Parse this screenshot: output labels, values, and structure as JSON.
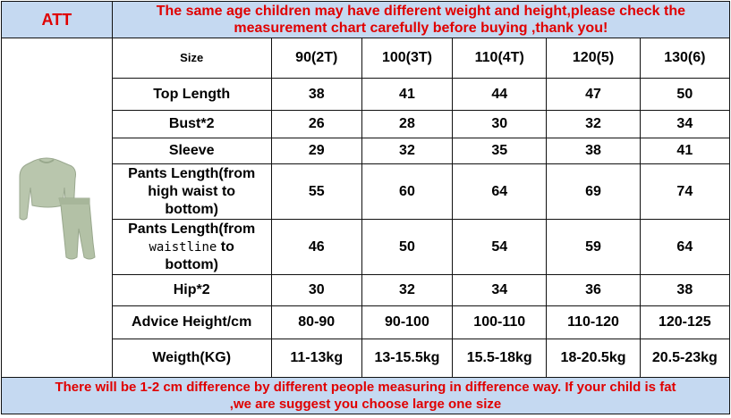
{
  "att_label": "ATT",
  "notice_line1": "The same age children may have different weight and height,please check the",
  "notice_line2": "measurement chart carefully before buying ,thank you!",
  "size_label": "Size",
  "sizes": [
    "90(2T)",
    "100(3T)",
    "110(4T)",
    "120(5)",
    "130(6)"
  ],
  "rows": [
    {
      "label": "Top Length",
      "values": [
        "38",
        "41",
        "44",
        "47",
        "50"
      ]
    },
    {
      "label": "Bust*2",
      "values": [
        "26",
        "28",
        "30",
        "32",
        "34"
      ]
    },
    {
      "label": "Sleeve",
      "values": [
        "29",
        "32",
        "35",
        "38",
        "41"
      ]
    },
    {
      "label_lines": [
        "Pants Length(from",
        "high waist to",
        "bottom)"
      ],
      "values": [
        "55",
        "60",
        "64",
        "69",
        "74"
      ]
    },
    {
      "label_lines": [
        "Pants Length(from",
        "waistline",
        "to",
        "bottom)"
      ],
      "values": [
        "46",
        "50",
        "54",
        "59",
        "64"
      ]
    },
    {
      "label": "Hip*2",
      "values": [
        "30",
        "32",
        "34",
        "36",
        "38"
      ]
    },
    {
      "label": "Advice Height/cm",
      "values": [
        "80-90",
        "90-100",
        "100-110",
        "110-120",
        "120-125"
      ]
    },
    {
      "label": "Weigth(KG)",
      "values": [
        "11-13kg",
        "13-15.5kg",
        "15.5-18kg",
        "18-20.5kg",
        "20.5-23kg"
      ]
    }
  ],
  "footer_line1": "There will be 1-2 cm difference by different people measuring in difference way. If your child is fat",
  "footer_line2": ",we are suggest you choose large one size",
  "colors": {
    "header_bg": "#c5d9f1",
    "notice_text": "#e00000",
    "garment": "#b9c6ad"
  }
}
